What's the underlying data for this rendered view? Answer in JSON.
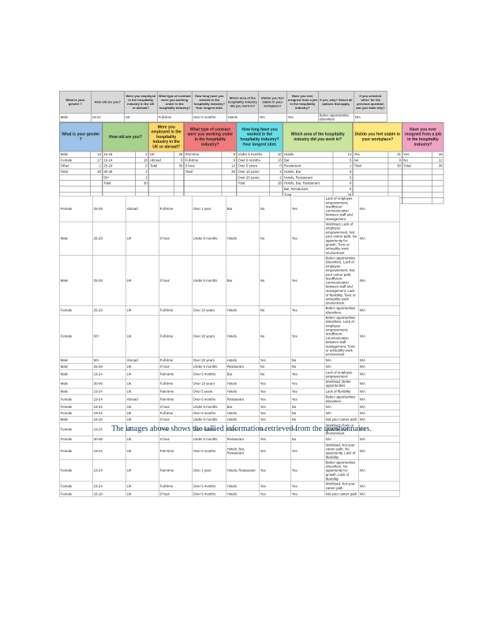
{
  "caption": "The images above shows the tallied information retrieved from the questionnaires.",
  "survey_sample": {
    "columns": [
      {
        "header": "What is your gender ?",
        "value": "Male"
      },
      {
        "header": "How old are you?",
        "value": "19-24"
      },
      {
        "header": "Were you employed in the hospitality industry in the UK or abroad?",
        "value": "UK"
      },
      {
        "header": "What type of contract were you working under in the hospitality industry?",
        "value": "Full-time"
      },
      {
        "header": "How long have you worked in the hospitality industry? Your longest stint.",
        "value": "Over 6 months"
      },
      {
        "header": "Which area of the hospitality industry did you work in?",
        "value": "Hotels"
      },
      {
        "header": "Did/do you feel stable in your workplace?",
        "value": "Yes"
      },
      {
        "header": "Have you ever resigned from a job in the hospitality industry?",
        "value": "Yes"
      },
      {
        "header": "If yes, why? Select all options that apply.",
        "value": "Better opportunities elsewhere"
      },
      {
        "header": "If you selected 'other' for the previous question can you state why?",
        "value": "N/A"
      }
    ]
  },
  "tally": {
    "groups": [
      {
        "question": "What is your gender ?",
        "color": "#9dc3e6",
        "rows": [
          [
            "Male",
            12
          ],
          [
            "Female",
            17
          ],
          [
            "Other",
            1
          ],
          [
            "Total",
            30
          ]
        ]
      },
      {
        "question": "How old are you?",
        "color": "#a9d18e",
        "rows": [
          [
            "16-18",
            2
          ],
          [
            "19-24",
            18
          ],
          [
            "25-29",
            6
          ],
          [
            "30-49",
            2
          ],
          [
            "50+",
            2
          ],
          [
            "Total",
            30
          ]
        ]
      },
      {
        "question": "Were you employed in the hospitality industry in the UK or abroad?",
        "color": "#ffd966",
        "rows": [
          [
            "UK",
            25
          ],
          [
            "Abroad",
            5
          ],
          [
            "Total",
            30
          ]
        ]
      },
      {
        "question": "What type of contract were you working under in the hospitality industry?",
        "color": "#ee7c7c",
        "rows": [
          [
            "Part-time",
            9
          ],
          [
            "Full-time",
            9
          ],
          [
            "0 hour",
            12
          ],
          [
            "Total",
            30
          ]
        ]
      },
      {
        "question": "How long have you worked in the hospitality industry? Your longest stint.",
        "color": "#66dee8",
        "rows": [
          [
            "Under 6 months",
            10
          ],
          [
            "Over 6 months",
            13
          ],
          [
            "Over 5 years",
            0
          ],
          [
            "Over 10 years",
            3
          ],
          [
            "Over 20 years",
            2
          ],
          [
            "Total",
            28
          ]
        ]
      },
      {
        "question": "Which area of the hospitality industry did you work in?",
        "color": "#c9e59f",
        "rows": [
          [
            "Hotels",
            14
          ],
          [
            "Bar",
            5
          ],
          [
            "Restaurant",
            1
          ],
          [
            "Hotels, Bar",
            6
          ],
          [
            "Hotels, Restaurant",
            2
          ],
          [
            "Hotels, Bar, Restaurant",
            0
          ],
          [
            "Bar, Restaurant",
            0
          ],
          [
            "Total",
            28
          ]
        ]
      },
      {
        "question": "Did/do you feel stable in your workplace?",
        "color": "#ffe87e",
        "rows": [
          [
            "Yes",
            21
          ],
          [
            "No",
            9
          ],
          [
            "Total",
            30
          ]
        ]
      },
      {
        "question": "Have you ever resigned from a job in the hospitality industry?",
        "color": "#f0a3c3",
        "rows": [
          [
            "Yes",
            18
          ],
          [
            "No",
            12
          ],
          [
            "Total",
            30
          ]
        ]
      }
    ]
  },
  "responses": {
    "rows": [
      [
        "Female",
        "25-29",
        "Abroad",
        "Full-time",
        "Over 1 year",
        "Bar",
        "No",
        "Yes",
        "Lack of employee empowerment, Insufficient communication between staff and management",
        "N/A"
      ],
      [
        "Male",
        "25-29",
        "UK",
        "0 hour",
        "Under 6 months",
        "Hotels",
        "No",
        "Yes",
        "Workload, Lack of employee empowerment, Not your career path, No opportunity for growth, Toxic or unhealthy work environment",
        "N/A"
      ],
      [
        "Male",
        "25-29",
        "UK",
        "0 hour",
        "Under 6 months",
        "Bar",
        "No",
        "Yes",
        "Better opportunities elsewhere, Lack of employee empowerment, Not your career path, Insufficient communication between staff and management, Lack of flexibility, Toxic or unhealthy work environment",
        "N/A"
      ],
      [
        "Female",
        "25-29",
        "UK",
        "Full-time",
        "Over 10 years",
        "Hotels",
        "No",
        "Yes",
        "Better opportunities elsewhere",
        "N/A"
      ],
      [
        "Female",
        "50+",
        "UK",
        "Full-time",
        "Over 20 years",
        "Hotels",
        "No",
        "Yes",
        "Better opportunities elsewhere, Lack of employee empowerment, Insufficient communication between staff management, Toxic or unhealthy work environment",
        "N/A"
      ],
      [
        "Male",
        "50+",
        "Abroad",
        "Full-time",
        "Over 20 years",
        "Hotels",
        "Yes",
        "No",
        "N/A",
        "N/A"
      ],
      [
        "Male",
        "25-29",
        "UK",
        "0 hour",
        "Under 6 months",
        "Restaurant",
        "No",
        "No",
        "N/A",
        "N/A"
      ],
      [
        "Male",
        "19-24",
        "UK",
        "Part-time",
        "Over 6 months",
        "Bar",
        "No",
        "Yes",
        "Lack of employee empowerment",
        "N/A"
      ],
      [
        "Male",
        "30-49",
        "UK",
        "Full-time",
        "Over 10 years",
        "Hotels",
        "Yes",
        "Yes",
        "Workload, Better opportunities",
        "N/A"
      ],
      [
        "Male",
        "19-24",
        "UK",
        "Part-time",
        "Over 5 years",
        "Hotels",
        "Yes",
        "Yes",
        "Lack of flexibility",
        "N/A"
      ],
      [
        "Female",
        "19-24",
        "Abroad",
        "Part-time",
        "Over 6 months",
        "Restaurant",
        "Yes",
        "Yes",
        "Better opportunities elsewhere",
        "N/A"
      ],
      [
        "Female",
        "19-24",
        "UK",
        "0 hour",
        "Under 6 months",
        "Bar",
        "Yes",
        "No",
        "N/A",
        "N/A"
      ],
      [
        "Female",
        "19-24",
        "UK",
        "Full-time",
        "Over 6 months",
        "Hotels",
        "Yes",
        "No",
        "N/A",
        "N/A"
      ],
      [
        "Male",
        "16-18",
        "UK",
        "0 hour",
        "Under 6 months",
        "Hotels",
        "Yes",
        "No",
        "Not your career path",
        "N/A"
      ],
      [
        "Female",
        "19-24",
        "UK",
        "0 hour",
        "Over 6 months",
        "Hotels",
        "Yes",
        "Yes",
        "Workload, Toxic or unhealthy work environment",
        "N/A"
      ],
      [
        "Female",
        "30-49",
        "UK",
        "0 hour",
        "Under 6 months",
        "Restaurant",
        "Yes",
        "No",
        "N/A",
        "N/A"
      ],
      [
        "Female",
        "19-24",
        "UK",
        "Part-time",
        "Over 6 months",
        "Hotels, Bar, Restaurant",
        "Yes",
        "Yes",
        "Workload, Not your career path, No opportunity, Lack of flexibility",
        "N/A"
      ],
      [
        "Female",
        "19-24",
        "UK",
        "Part-time",
        "Over 1 year",
        "Hotels, Restaurant",
        "Yes",
        "Yes",
        "Better opportunities elsewhere, No opportunity for growth, Lack of flexibility",
        "N/A"
      ],
      [
        "Female",
        "19-24",
        "UK",
        "Full-time",
        "Over 6 months",
        "Hotels",
        "Yes",
        "Yes",
        "Workload, Not your career path",
        "N/A"
      ],
      [
        "Female",
        "16-18",
        "UK",
        "0 hour",
        "Over 6 months",
        "Hotels",
        "Yes",
        "Yes",
        "Not your career path",
        "N/A"
      ]
    ]
  }
}
